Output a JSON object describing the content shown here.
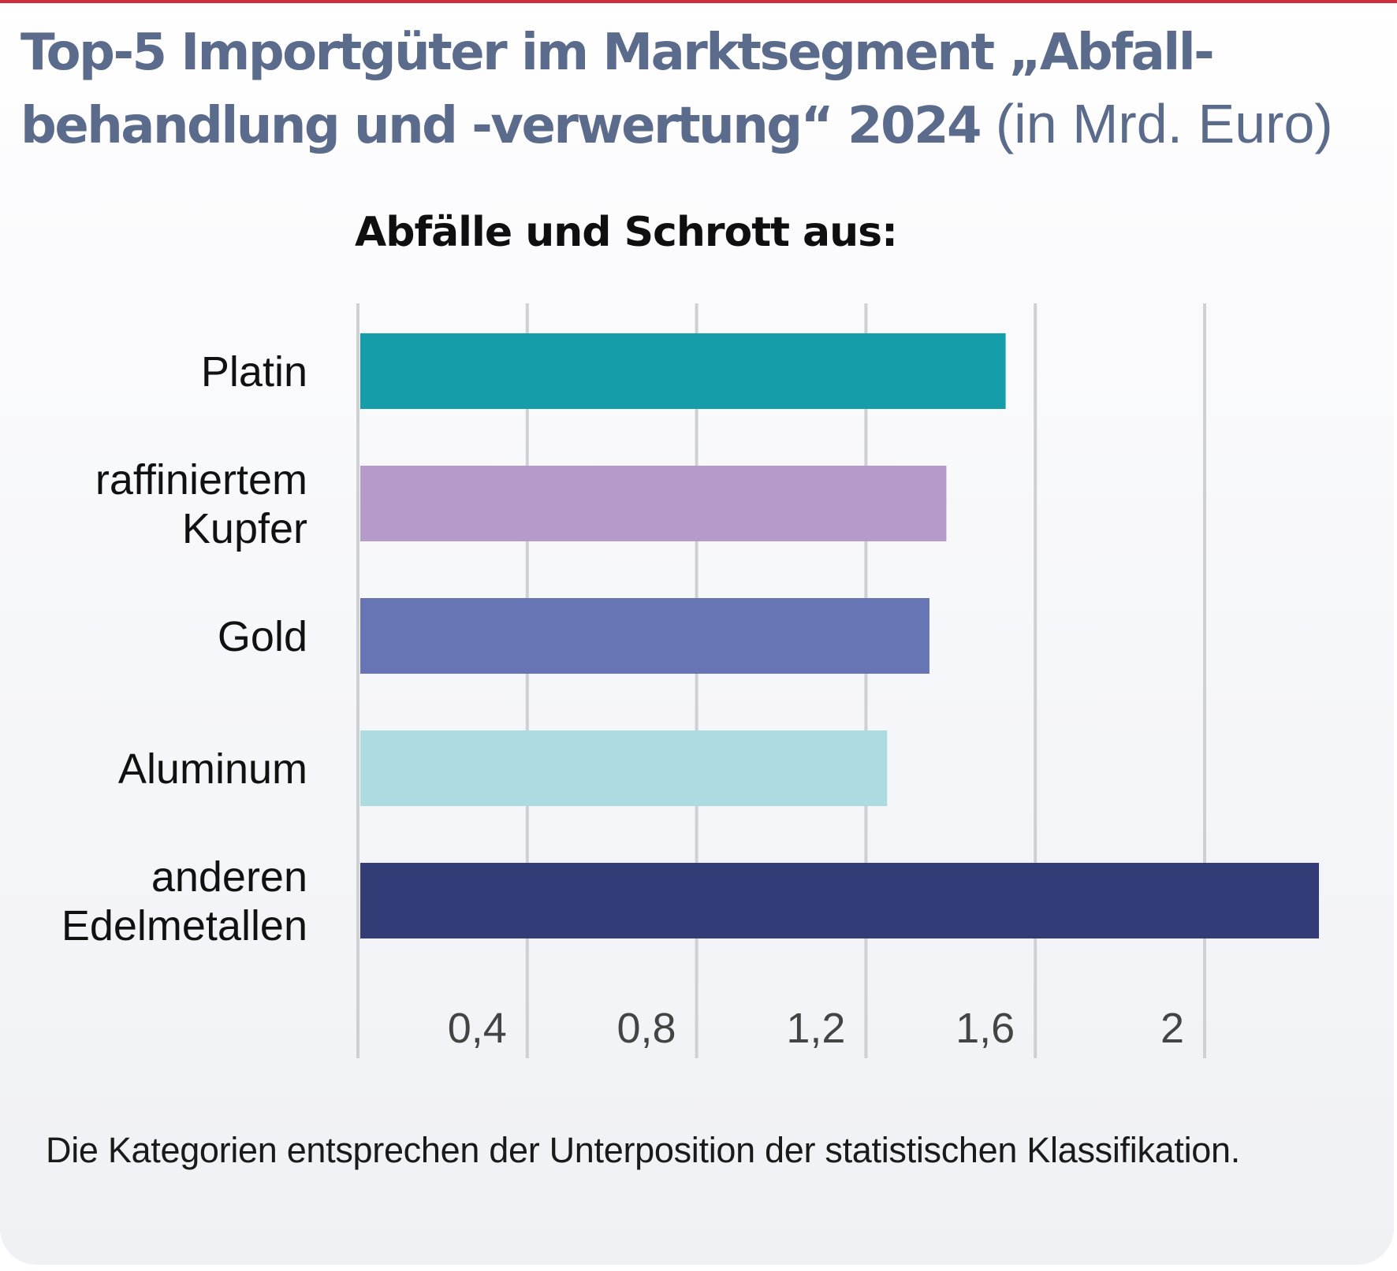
{
  "header": {
    "title_bold": "Top-5 Importgüter im Marktsegment „Abfall­behandlung und -verwertung“ 2024",
    "title_unit": "(in Mrd. Euro)"
  },
  "chart_data": {
    "type": "bar",
    "orientation": "horizontal",
    "title": "Top-5 Importgüter im Marktsegment „Abfallbehandlung und -verwertung“ 2024 (in Mrd. Euro)",
    "subtitle": "Abfälle und Schrott aus:",
    "categories": [
      [
        "Platin"
      ],
      [
        "raffiniertem",
        "Kupfer"
      ],
      [
        "Gold"
      ],
      [
        "Aluminum"
      ],
      [
        "anderen",
        "Edelmetallen"
      ]
    ],
    "values": [
      1.53,
      1.39,
      1.35,
      1.25,
      2.27
    ],
    "colors": [
      "#159ea9",
      "#b59aca",
      "#6775b4",
      "#acdbe2",
      "#343c78"
    ],
    "xlabel": "",
    "ylabel": "",
    "xlim": [
      0,
      2.2
    ],
    "ticks": [
      0.4,
      0.8,
      1.2,
      1.6,
      2.0
    ],
    "tick_labels": [
      "0,4",
      "0,8",
      "1,2",
      "1,6",
      "2"
    ],
    "grid": true,
    "legend": "none",
    "unit": "Mrd. Euro"
  },
  "footnote": "Die Kategorien entsprechen der Unterposition der statistischen Klassifikation.",
  "colors": {
    "accent_bar": "#c8323f",
    "title": "#5b6b8c",
    "grid": "#cfd0d4"
  }
}
